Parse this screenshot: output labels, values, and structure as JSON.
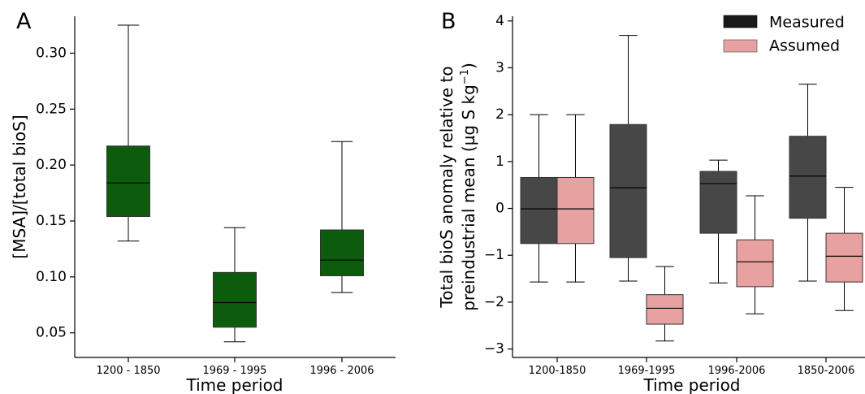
{
  "chart_data": [
    {
      "type": "box",
      "panel": "A",
      "xlabel": "Time period",
      "ylabel": "[MSA]/[total bioS]",
      "ylim": [
        0.028,
        0.333
      ],
      "yticks": [
        "0.05",
        "0.10",
        "0.15",
        "0.20",
        "0.25",
        "0.30"
      ],
      "categories": [
        "1200 - 1850",
        "1969 - 1995",
        "1996 - 2006"
      ],
      "series": [
        {
          "color": "#0d5c0d",
          "boxes": [
            {
              "whislo": 0.132,
              "q1": 0.154,
              "med": 0.184,
              "q3": 0.217,
              "whishi": 0.325
            },
            {
              "whislo": 0.042,
              "q1": 0.055,
              "med": 0.077,
              "q3": 0.104,
              "whishi": 0.144
            },
            {
              "whislo": 0.086,
              "q1": 0.101,
              "med": 0.115,
              "q3": 0.142,
              "whishi": 0.221
            }
          ]
        }
      ]
    },
    {
      "type": "box",
      "panel": "B",
      "xlabel": "Time period",
      "ylabel_line1": "Total bioS anomaly relative to",
      "ylabel_line2": "preindustrial mean (µg S kg",
      "ylabel_sup": "−1",
      "ylabel_end": ")",
      "ylim": [
        -3.18,
        4.1
      ],
      "yticks": [
        "−3",
        "−2",
        "−1",
        "0",
        "1",
        "2",
        "3",
        "4"
      ],
      "categories": [
        "1200-1850",
        "1969-1995",
        "1996-2006",
        "1850-2006"
      ],
      "series": [
        {
          "name": "Measured",
          "color": "#474747",
          "boxes": [
            {
              "whislo": -1.57,
              "q1": -0.75,
              "med": -0.01,
              "q3": 0.66,
              "whishi": 2.0
            },
            {
              "whislo": -1.55,
              "q1": -1.05,
              "med": 0.44,
              "q3": 1.79,
              "whishi": 3.69
            },
            {
              "whislo": -1.59,
              "q1": -0.53,
              "med": 0.53,
              "q3": 0.79,
              "whishi": 1.03
            },
            {
              "whislo": -1.55,
              "q1": -0.21,
              "med": 0.69,
              "q3": 1.54,
              "whishi": 2.65
            }
          ]
        },
        {
          "name": "Assumed",
          "color": "#e8a1a1",
          "boxes": [
            {
              "whislo": -1.57,
              "q1": -0.75,
              "med": -0.01,
              "q3": 0.66,
              "whishi": 2.0
            },
            {
              "whislo": -2.83,
              "q1": -2.47,
              "med": -2.13,
              "q3": -1.84,
              "whishi": -1.24
            },
            {
              "whislo": -2.25,
              "q1": -1.67,
              "med": -1.14,
              "q3": -0.67,
              "whishi": 0.27
            },
            {
              "whislo": -2.18,
              "q1": -1.57,
              "med": -1.02,
              "q3": -0.53,
              "whishi": 0.45
            }
          ]
        }
      ],
      "legend": {
        "position": "top-right",
        "entries": [
          "Measured",
          "Assumed"
        ]
      }
    }
  ]
}
